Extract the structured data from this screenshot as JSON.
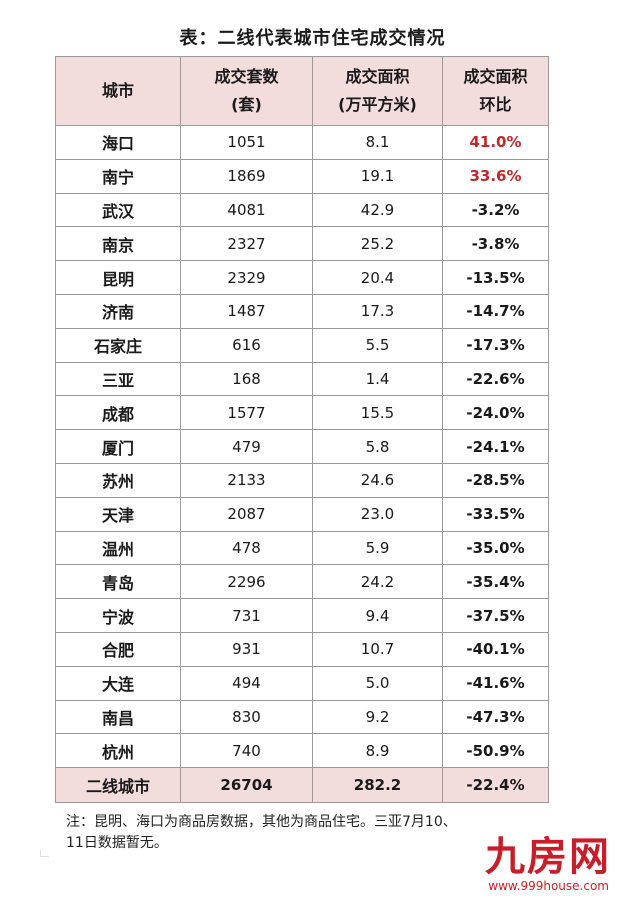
{
  "title": "表：二线代表城市住宅成交情况",
  "header": {
    "city": "城市",
    "units_line1": "成交套数",
    "units_line2": "(套)",
    "area_line1": "成交面积",
    "area_line2": "(万平方米)",
    "change_line1": "成交面积",
    "change_line2": "环比"
  },
  "rows": [
    {
      "city": "海口",
      "units": "1051",
      "area": "8.1",
      "change": "41.0%",
      "positive": true
    },
    {
      "city": "南宁",
      "units": "1869",
      "area": "19.1",
      "change": "33.6%",
      "positive": true
    },
    {
      "city": "武汉",
      "units": "4081",
      "area": "42.9",
      "change": "-3.2%",
      "positive": false
    },
    {
      "city": "南京",
      "units": "2327",
      "area": "25.2",
      "change": "-3.8%",
      "positive": false
    },
    {
      "city": "昆明",
      "units": "2329",
      "area": "20.4",
      "change": "-13.5%",
      "positive": false
    },
    {
      "city": "济南",
      "units": "1487",
      "area": "17.3",
      "change": "-14.7%",
      "positive": false
    },
    {
      "city": "石家庄",
      "units": "616",
      "area": "5.5",
      "change": "-17.3%",
      "positive": false
    },
    {
      "city": "三亚",
      "units": "168",
      "area": "1.4",
      "change": "-22.6%",
      "positive": false
    },
    {
      "city": "成都",
      "units": "1577",
      "area": "15.5",
      "change": "-24.0%",
      "positive": false
    },
    {
      "city": "厦门",
      "units": "479",
      "area": "5.8",
      "change": "-24.1%",
      "positive": false
    },
    {
      "city": "苏州",
      "units": "2133",
      "area": "24.6",
      "change": "-28.5%",
      "positive": false
    },
    {
      "city": "天津",
      "units": "2087",
      "area": "23.0",
      "change": "-33.5%",
      "positive": false
    },
    {
      "city": "温州",
      "units": "478",
      "area": "5.9",
      "change": "-35.0%",
      "positive": false
    },
    {
      "city": "青岛",
      "units": "2296",
      "area": "24.2",
      "change": "-35.4%",
      "positive": false
    },
    {
      "city": "宁波",
      "units": "731",
      "area": "9.4",
      "change": "-37.5%",
      "positive": false
    },
    {
      "city": "合肥",
      "units": "931",
      "area": "10.7",
      "change": "-40.1%",
      "positive": false
    },
    {
      "city": "大连",
      "units": "494",
      "area": "5.0",
      "change": "-41.6%",
      "positive": false
    },
    {
      "city": "南昌",
      "units": "830",
      "area": "9.2",
      "change": "-47.3%",
      "positive": false
    },
    {
      "city": "杭州",
      "units": "740",
      "area": "8.9",
      "change": "-50.9%",
      "positive": false
    }
  ],
  "total": {
    "city": "二线城市",
    "units": "26704",
    "area": "282.2",
    "change": "-22.4%"
  },
  "note_line1": "注：昆明、海口为商品房数据，其他为商品住宅。三亚7月10、",
  "note_line2": "11日数据暂无。",
  "logo": {
    "brand": "九房网",
    "url": "www.999house.com"
  },
  "colors": {
    "header_bg": "#f2dcdc",
    "positive_text": "#c0282d",
    "logo_red": "#c81e2a"
  }
}
